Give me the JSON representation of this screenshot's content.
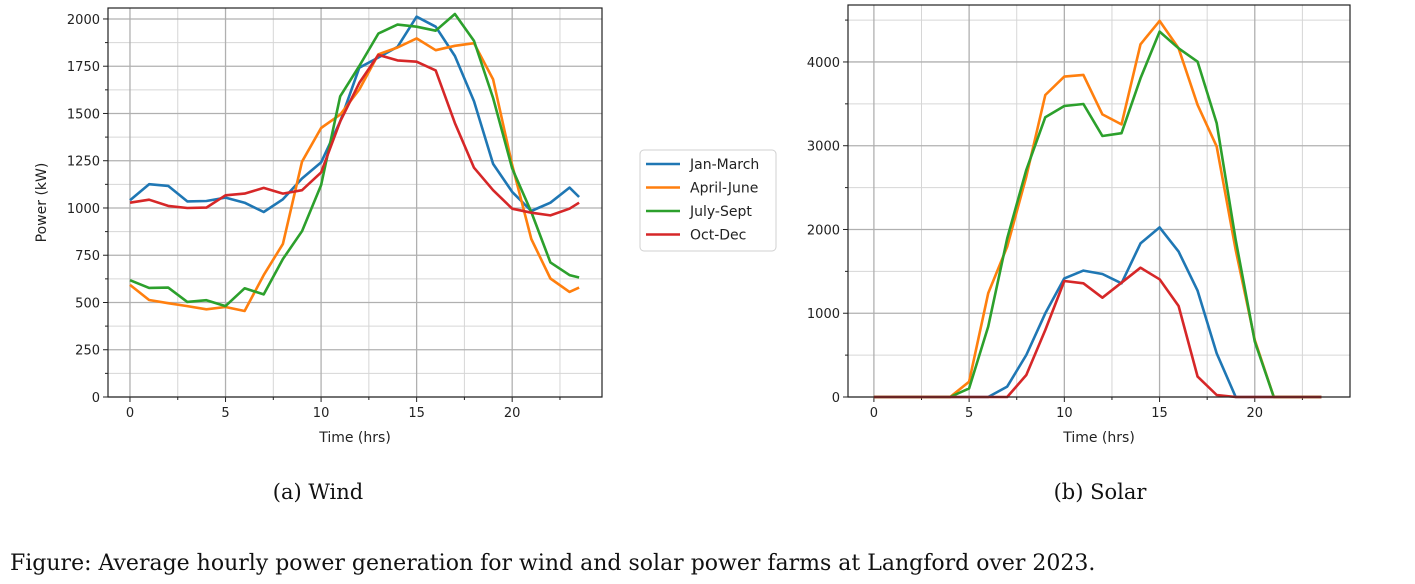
{
  "colors": {
    "Jan-March": "#1f77b4",
    "April-June": "#ff7f0e",
    "July-Sept": "#2ca02c",
    "Oct-Dec": "#d62728"
  },
  "legend": {
    "placement": "between-charts",
    "entries": [
      "Jan-March",
      "April-June",
      "July-Sept",
      "Oct-Dec"
    ]
  },
  "figure_caption": "Figure:  Average hourly power generation for wind and solar power farms at Langford over 2023.",
  "chart_data": [
    {
      "type": "line",
      "caption": "(a) Wind",
      "xlabel": "Time (hrs)",
      "ylabel": "Power (kW)",
      "xlim": [
        -1.15,
        24.7
      ],
      "ylim": [
        0,
        2058
      ],
      "xticks": [
        0,
        5,
        10,
        15,
        20
      ],
      "yticks": [
        0,
        250,
        500,
        750,
        1000,
        1250,
        1500,
        1750,
        2000
      ],
      "grid": true,
      "x": [
        0,
        1,
        2,
        3,
        4,
        5,
        6,
        7,
        8,
        9,
        10,
        11,
        12,
        13,
        14,
        15,
        16,
        17,
        18,
        19,
        20,
        21,
        22,
        23,
        23.5
      ],
      "series": [
        {
          "name": "Jan-March",
          "values": [
            1041,
            1126,
            1117,
            1035,
            1037,
            1055,
            1028,
            979,
            1046,
            1156,
            1241,
            1458,
            1742,
            1796,
            1852,
            2012,
            1959,
            1804,
            1565,
            1233,
            1085,
            984,
            1028,
            1108,
            1058
          ]
        },
        {
          "name": "April-June",
          "values": [
            593,
            513,
            496,
            481,
            464,
            476,
            455,
            645,
            810,
            1245,
            1423,
            1494,
            1627,
            1813,
            1849,
            1897,
            1835,
            1858,
            1872,
            1680,
            1227,
            836,
            627,
            556,
            579
          ]
        },
        {
          "name": "July-Sept",
          "values": [
            618,
            577,
            579,
            503,
            512,
            481,
            575,
            543,
            730,
            877,
            1121,
            1591,
            1751,
            1923,
            1970,
            1959,
            1938,
            2026,
            1884,
            1582,
            1209,
            979,
            712,
            645,
            632
          ]
        },
        {
          "name": "Oct-Dec",
          "values": [
            1028,
            1044,
            1011,
            1000,
            1002,
            1067,
            1076,
            1106,
            1076,
            1094,
            1188,
            1458,
            1662,
            1810,
            1781,
            1774,
            1728,
            1449,
            1213,
            1094,
            996,
            975,
            961,
            996,
            1028
          ]
        }
      ]
    },
    {
      "type": "line",
      "caption": "(b) Solar",
      "xlabel": "Time (hrs)",
      "ylabel": "",
      "xlim": [
        -1.36,
        25
      ],
      "ylim": [
        0,
        4680
      ],
      "xticks": [
        0,
        5,
        10,
        15,
        20
      ],
      "yticks": [
        0,
        1000,
        2000,
        3000,
        4000
      ],
      "grid": true,
      "x": [
        0,
        1,
        2,
        3,
        4,
        5,
        6,
        7,
        8,
        9,
        10,
        11,
        12,
        13,
        14,
        15,
        16,
        17,
        18,
        19,
        20,
        21,
        22,
        23,
        23.5
      ],
      "series": [
        {
          "name": "Jan-March",
          "values": [
            0,
            0,
            0,
            0,
            0,
            0,
            0,
            124,
            501,
            999,
            1416,
            1509,
            1468,
            1357,
            1834,
            2025,
            1736,
            1269,
            521,
            0,
            0,
            0,
            0,
            0,
            0
          ]
        },
        {
          "name": "April-June",
          "values": [
            0,
            0,
            0,
            0,
            0,
            183,
            1238,
            1795,
            2631,
            3606,
            3825,
            3845,
            3374,
            3255,
            4211,
            4490,
            4163,
            3487,
            2989,
            1755,
            681,
            0,
            0,
            0,
            0
          ]
        },
        {
          "name": "July-Sept",
          "values": [
            0,
            0,
            0,
            0,
            0,
            103,
            840,
            1894,
            2711,
            3340,
            3474,
            3498,
            3116,
            3149,
            3805,
            4362,
            4163,
            4003,
            3268,
            1875,
            661,
            0,
            0,
            0,
            0
          ]
        },
        {
          "name": "Oct-Dec",
          "values": [
            0,
            0,
            0,
            0,
            0,
            0,
            0,
            0,
            263,
            800,
            1385,
            1357,
            1186,
            1365,
            1544,
            1405,
            1087,
            243,
            24,
            0,
            0,
            0,
            0,
            0,
            0
          ]
        }
      ]
    }
  ]
}
